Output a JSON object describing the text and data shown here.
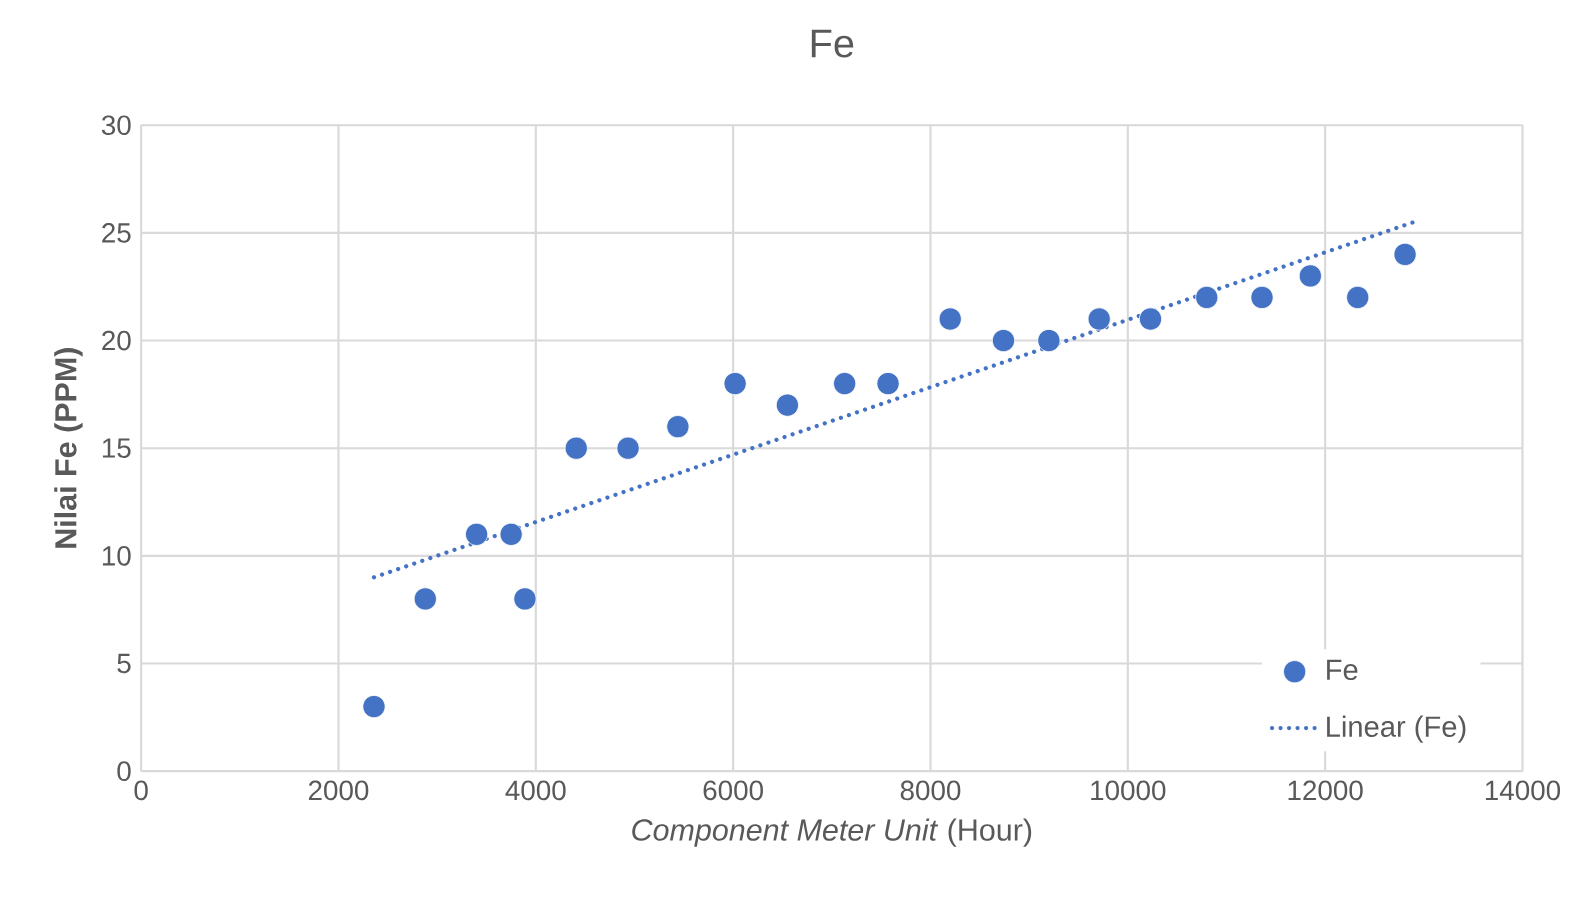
{
  "chart_data": {
    "type": "scatter",
    "title": "Fe",
    "xlabel": "*Component Meter Unit* (Hour)",
    "ylabel": "Nilai Fe (PPM)",
    "xlim": [
      0,
      14000
    ],
    "xticks": [
      0,
      2000,
      4000,
      6000,
      8000,
      10000,
      12000,
      14000
    ],
    "ylim": [
      0,
      30
    ],
    "yticks": [
      0,
      5,
      10,
      15,
      20,
      25,
      30
    ],
    "grid": true,
    "legend": "bottom right",
    "series": [
      {
        "name": "Fe",
        "marker": "circle",
        "color": "#4472c4",
        "x": [
          2360,
          2880,
          3400,
          3750,
          3890,
          4410,
          4935,
          5440,
          6020,
          6550,
          7130,
          7570,
          8200,
          8740,
          9200,
          9710,
          10230,
          10800,
          11360,
          11850,
          12330,
          12810
        ],
        "values": [
          3,
          8,
          11,
          11,
          8,
          15,
          15,
          16,
          18,
          17,
          18,
          18,
          21,
          20,
          20,
          21,
          21,
          22,
          22,
          23,
          22,
          24
        ]
      },
      {
        "name": "Linear (Fe)",
        "type": "line",
        "line_style": "dotted",
        "color": "#4472c4",
        "x": [
          2360,
          12900
        ],
        "values": [
          9.0,
          25.5
        ]
      }
    ]
  }
}
